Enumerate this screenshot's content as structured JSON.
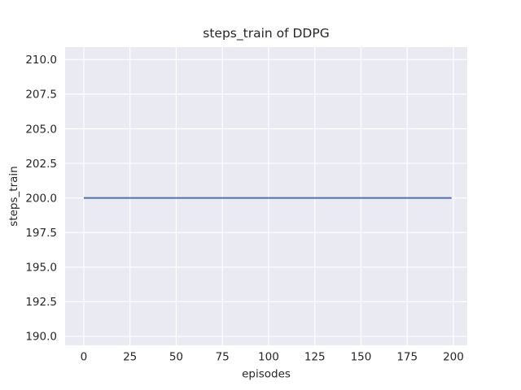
{
  "figure": {
    "background": "#FFFFFF"
  },
  "chart_data": {
    "type": "line",
    "title": "steps_train of DDPG",
    "xlabel": "episodes",
    "ylabel": "steps_train",
    "x_tick_labels": [
      "0",
      "25",
      "50",
      "75",
      "100",
      "125",
      "150",
      "175",
      "200"
    ],
    "x_tick_values": [
      0,
      25,
      50,
      75,
      100,
      125,
      150,
      175,
      200
    ],
    "y_tick_labels": [
      "190.0",
      "192.5",
      "195.0",
      "197.5",
      "200.0",
      "202.5",
      "205.0",
      "207.5",
      "210.0"
    ],
    "y_tick_values": [
      190.0,
      192.5,
      195.0,
      197.5,
      200.0,
      202.5,
      205.0,
      207.5,
      210.0
    ],
    "xlim": [
      -10.1,
      207.5
    ],
    "ylim": [
      189.35,
      210.9
    ],
    "grid": true,
    "legend_position": "none",
    "series": [
      {
        "name": "steps_train",
        "color": "#4C72B0",
        "x": [
          0,
          199
        ],
        "y": [
          200,
          200
        ]
      }
    ],
    "colors": {
      "plot_background": "#EAEAF2",
      "gridline": "#FFFFFF",
      "line": "#4C72B0",
      "text": "#262626"
    }
  }
}
